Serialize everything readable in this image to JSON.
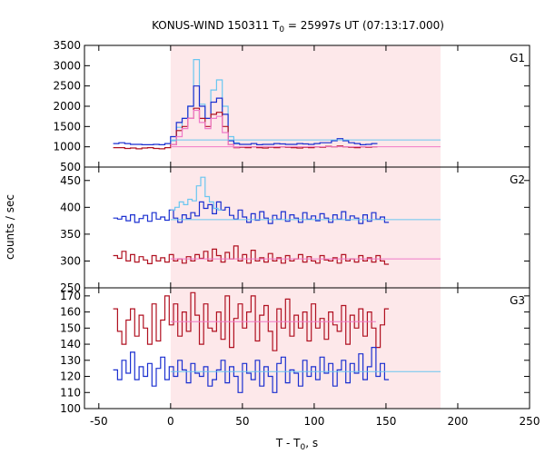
{
  "chart_data": {
    "type": "line",
    "title": "KONUS-WIND 150311 T",
    "title_sub": "0",
    "title_rest": " = 25997s UT (07:13:17.000)",
    "xlabel": "T - T",
    "xlabel_sub": "0",
    "xlabel_rest": ", s",
    "ylabel": "counts / sec",
    "xlim": [
      -60,
      250
    ],
    "x_ticks": [
      -50,
      0,
      50,
      100,
      150,
      200,
      250
    ],
    "x_tick_labels": [
      "-50",
      "0",
      "50",
      "100",
      "150",
      "200",
      "250"
    ],
    "shaded_interval": {
      "x": [
        0,
        188
      ],
      "color": "#fde8ea"
    },
    "colors": {
      "red": "#b01020",
      "blue": "#1a2fd0",
      "light_blue": "#6ac6f0",
      "pink": "#f07ac8"
    },
    "panels": [
      {
        "name": "G1",
        "ylim": [
          500,
          3500
        ],
        "y_ticks": [
          500,
          1000,
          1500,
          2000,
          2500,
          3000,
          3500
        ],
        "y_tick_labels": [
          "500",
          "1000",
          "1500",
          "2000",
          "2500",
          "3000",
          "3500"
        ],
        "bin_width": 4,
        "series": [
          {
            "color": "light_blue",
            "x_start": 0,
            "values": [
              1150,
              1480,
              1700,
              2000,
              3150,
              2050,
              1700,
              2400,
              2650,
              2000,
              1250,
              1100
            ]
          },
          {
            "color": "blue",
            "x_start": -40,
            "values": [
              1080,
              1100,
              1080,
              1060,
              1060,
              1050,
              1050,
              1060,
              1050,
              1080,
              1250,
              1600,
              1700,
              2000,
              2500,
              2000,
              1700,
              2100,
              2200,
              1800,
              1150,
              1080,
              1060,
              1060,
              1080,
              1050,
              1060,
              1060,
              1080,
              1070,
              1060,
              1060,
              1080,
              1070,
              1060,
              1080,
              1100,
              1100,
              1150,
              1200,
              1150,
              1100,
              1080,
              1050,
              1060,
              1080
            ]
          },
          {
            "color": "red",
            "x_start": -40,
            "values": [
              980,
              980,
              960,
              970,
              950,
              970,
              980,
              960,
              950,
              980,
              1050,
              1400,
              1500,
              1700,
              1950,
              1700,
              1500,
              1800,
              1850,
              1500,
              1050,
              980,
              990,
              980,
              1000,
              980,
              970,
              990,
              980,
              1000,
              990,
              980,
              970,
              990,
              980,
              1000,
              990,
              1010,
              1000,
              1020,
              1000,
              990,
              980,
              1000,
              990,
              1000
            ]
          },
          {
            "color": "pink",
            "x_start": 0,
            "values": [
              1050,
              1250,
              1450,
              1700,
              1900,
              1600,
              1450,
              1700,
              1750,
              1350,
              1050,
              990
            ]
          }
        ],
        "reference_lines": [
          {
            "color": "light_blue",
            "x": [
              0,
              188
            ],
            "y": 1170
          },
          {
            "color": "pink",
            "x": [
              0,
              188
            ],
            "y": 1000
          }
        ]
      },
      {
        "name": "G2",
        "ylim": [
          250,
          475
        ],
        "y_ticks": [
          250,
          300,
          350,
          400,
          450
        ],
        "y_tick_labels": [
          "250",
          "300",
          "350",
          "400",
          "450"
        ],
        "bin_width": 3,
        "series": [
          {
            "color": "blue",
            "x_start": -40,
            "values": [
              380,
              378,
              383,
              375,
              386,
              372,
              379,
              385,
              374,
              390,
              378,
              382,
              376,
              395,
              380,
              372,
              386,
              379,
              390,
              384,
              410,
              398,
              405,
              388,
              410,
              395,
              400,
              385,
              378,
              395,
              382,
              372,
              388,
              376,
              392,
              380,
              370,
              385,
              378,
              392,
              374,
              386,
              380,
              372,
              390,
              378,
              384,
              375,
              388,
              380,
              372,
              386,
              378,
              392,
              376,
              384,
              380,
              370,
              386,
              374,
              390,
              378,
              382,
              372
            ]
          },
          {
            "color": "light_blue",
            "x_start": 0,
            "values": [
              395,
              400,
              410,
              405,
              415,
              412,
              440,
              456,
              420,
              410,
              398,
              395
            ]
          },
          {
            "color": "red",
            "x_start": -40,
            "values": [
              310,
              305,
              318,
              300,
              312,
              298,
              308,
              302,
              295,
              310,
              300,
              306,
              298,
              312,
              300,
              304,
              296,
              308,
              300,
              312,
              305,
              318,
              300,
              322,
              310,
              298,
              316,
              304,
              328,
              300,
              312,
              296,
              320,
              300,
              306,
              298,
              314,
              300,
              306,
              296,
              310,
              300,
              304,
              312,
              298,
              308,
              300,
              296,
              310,
              302,
              300,
              306,
              296,
              312,
              300,
              304,
              298,
              310,
              300,
              306,
              298,
              310,
              300,
              294
            ]
          }
        ],
        "reference_lines": [
          {
            "color": "light_blue",
            "x": [
              0,
              188
            ],
            "y": 377
          },
          {
            "color": "pink",
            "x": [
              0,
              188
            ],
            "y": 304
          }
        ]
      },
      {
        "name": "G3",
        "ylim": [
          100,
          175
        ],
        "y_ticks": [
          100,
          110,
          120,
          130,
          140,
          150,
          160,
          170
        ],
        "y_tick_labels": [
          "100",
          "110",
          "120",
          "130",
          "140",
          "150",
          "160",
          "170"
        ],
        "bin_width": 3,
        "series": [
          {
            "color": "red",
            "x_start": -40,
            "values": [
              162,
              148,
              140,
              155,
              162,
              145,
              158,
              150,
              140,
              165,
              142,
              155,
              170,
              152,
              165,
              145,
              160,
              148,
              172,
              158,
              140,
              165,
              150,
              148,
              160,
              143,
              170,
              138,
              156,
              165,
              150,
              160,
              170,
              142,
              158,
              164,
              148,
              136,
              162,
              150,
              168,
              145,
              158,
              150,
              160,
              142,
              165,
              150,
              156,
              143,
              160,
              152,
              148,
              164,
              140,
              158,
              150,
              162,
              145,
              160,
              150,
              138,
              152,
              162
            ]
          },
          {
            "color": "blue",
            "x_start": -40,
            "values": [
              124,
              118,
              130,
              122,
              135,
              118,
              126,
              120,
              128,
              114,
              125,
              132,
              118,
              126,
              120,
              130,
              124,
              116,
              128,
              122,
              120,
              126,
              114,
              118,
              124,
              130,
              116,
              126,
              120,
              110,
              128,
              122,
              118,
              130,
              114,
              126,
              120,
              110,
              128,
              132,
              116,
              124,
              122,
              114,
              130,
              120,
              126,
              118,
              132,
              122,
              128,
              114,
              124,
              130,
              116,
              128,
              122,
              134,
              118,
              126,
              138,
              120,
              128,
              118
            ]
          }
        ],
        "reference_lines": [
          {
            "color": "pink",
            "x": [
              0,
              143
            ],
            "y": 154
          },
          {
            "color": "light_blue",
            "x": [
              0,
              188
            ],
            "y": 123
          }
        ]
      }
    ]
  }
}
